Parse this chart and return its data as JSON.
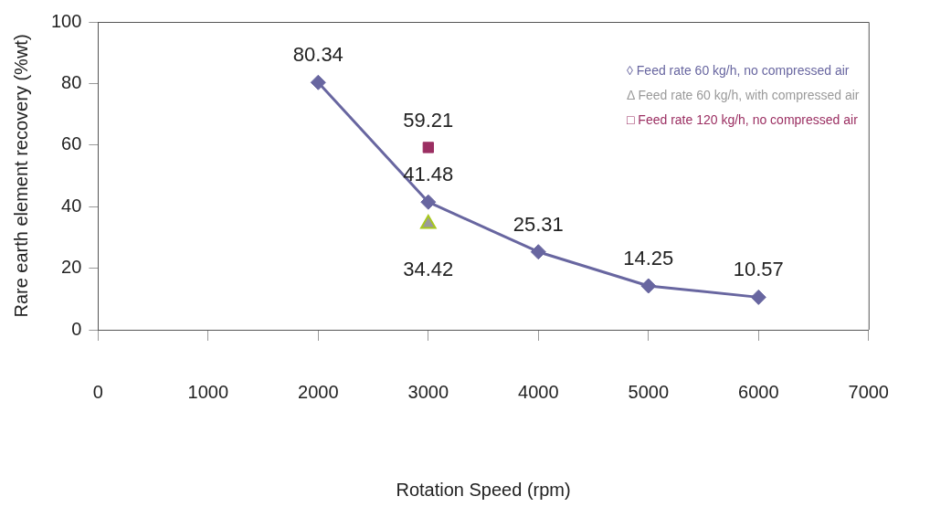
{
  "chart_data": {
    "type": "line",
    "xlabel": "Rotation Speed (rpm)",
    "ylabel": "Rare earth element recovery (%wt)",
    "xlim": [
      0,
      7000
    ],
    "xticks": [
      0,
      1000,
      2000,
      3000,
      4000,
      5000,
      6000,
      7000
    ],
    "ylim": [
      0,
      100
    ],
    "yticks": [
      0,
      20,
      40,
      60,
      80,
      100
    ],
    "grid": false,
    "legend": "top right",
    "data_labels": true,
    "series": [
      {
        "name": "◊ Feed rate 60 kg/h, no compressed air",
        "color": "#6866a0",
        "marker": "diamond",
        "x": [
          2000,
          3000,
          4000,
          5000,
          6000
        ],
        "values": [
          80.34,
          41.48,
          25.31,
          14.25,
          10.57
        ]
      },
      {
        "name": "Δ Feed rate 60 kg/h, with compressed air",
        "type": "scatter",
        "color": "#9a9a9a",
        "marker": "triangle",
        "x": [
          3000
        ],
        "values": [
          34.42
        ]
      },
      {
        "name": "□ Feed rate 120 kg/h, no compressed air",
        "type": "scatter",
        "color": "#9b2f62",
        "marker": "square",
        "x": [
          3000
        ],
        "values": [
          59.21
        ]
      }
    ]
  }
}
